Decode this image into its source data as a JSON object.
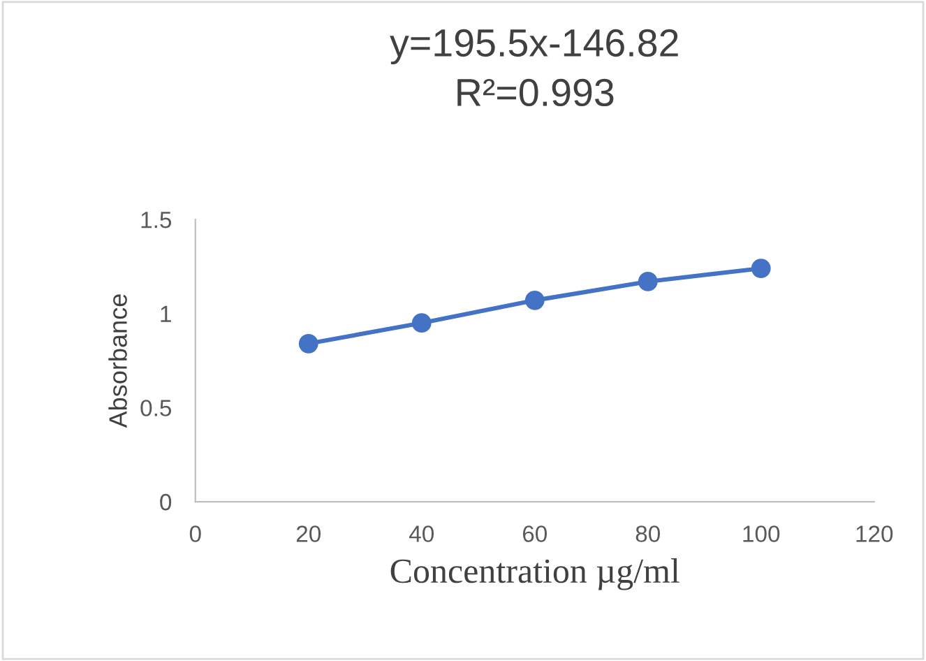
{
  "chart_data": {
    "type": "line",
    "title": "y=195.5x-146.82",
    "subtitle": "R²=0.993",
    "xlabel": "Concentration µg/ml",
    "ylabel": "Absorbance",
    "x": [
      20,
      40,
      60,
      80,
      100
    ],
    "series": [
      {
        "color": "#4472c4",
        "values": [
          0.84,
          0.95,
          1.07,
          1.17,
          1.24
        ]
      }
    ],
    "xlim": [
      0,
      120
    ],
    "xticks": [
      0,
      20,
      40,
      60,
      80,
      100,
      120
    ],
    "ylim": [
      0,
      1.5
    ],
    "yticks": [
      0,
      0.5,
      1,
      1.5
    ],
    "grid": false,
    "legend": false,
    "marker": "circle",
    "line_style": "solid"
  }
}
